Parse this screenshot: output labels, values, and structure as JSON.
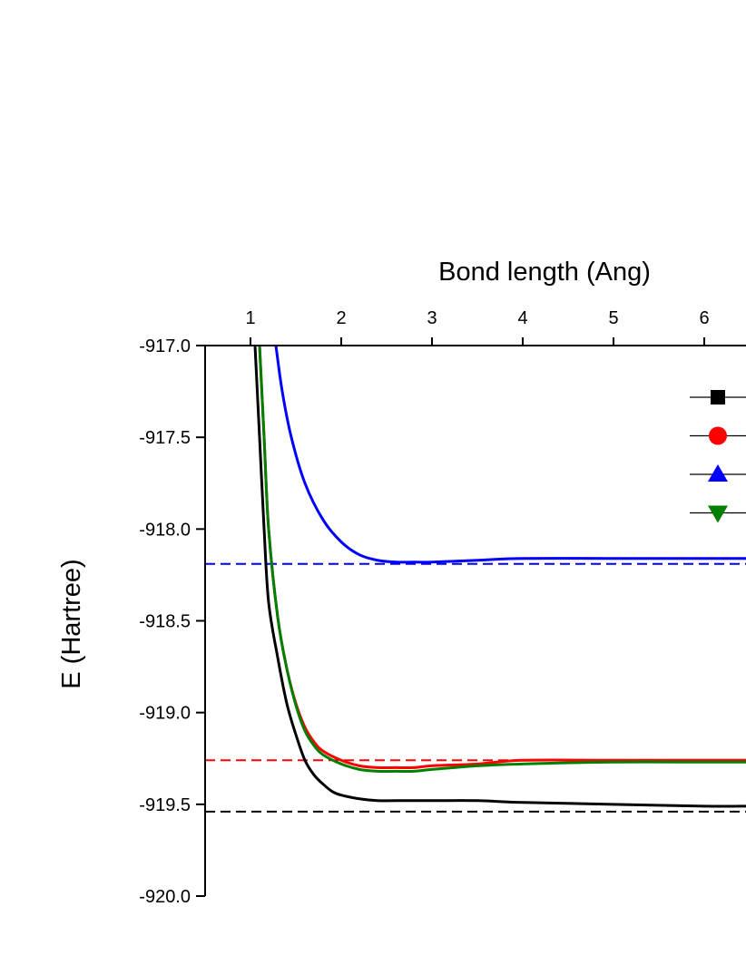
{
  "chart_data": {
    "type": "line",
    "xlabel": "Bond length (Ang)",
    "ylabel": "E (Hartree)",
    "xlim": [
      0.5,
      6.5
    ],
    "ylim": [
      -920.0,
      -917.0
    ],
    "x_ticks": [
      1,
      2,
      3,
      4,
      5,
      6
    ],
    "x_tick_labels": [
      "1",
      "2",
      "3",
      "4",
      "5",
      "6"
    ],
    "y_ticks": [
      -917.0,
      -917.5,
      -918.0,
      -918.5,
      -919.0,
      -919.5,
      -920.0
    ],
    "y_tick_labels": [
      "-917.0",
      "-917.5",
      "-918.0",
      "-918.5",
      "-919.0",
      "-919.5",
      "-920.0"
    ],
    "x_axis_position": "top",
    "grid": false,
    "legend_position": "top-right",
    "series": [
      {
        "color": "#000000",
        "marker": "square",
        "x": [
          1.05,
          1.1,
          1.15,
          1.2,
          1.3,
          1.4,
          1.5,
          1.6,
          1.7,
          1.8,
          1.9,
          2.0,
          2.2,
          2.4,
          2.6,
          3.0,
          3.5,
          4.0,
          5.0,
          6.0,
          6.5
        ],
        "y": [
          -917.0,
          -917.5,
          -918.0,
          -918.4,
          -918.7,
          -918.95,
          -919.12,
          -919.26,
          -919.34,
          -919.39,
          -919.43,
          -919.45,
          -919.47,
          -919.48,
          -919.48,
          -919.48,
          -919.48,
          -919.49,
          -919.5,
          -919.51,
          -919.51
        ]
      },
      {
        "color": "#ff0000",
        "marker": "circle",
        "x": [
          1.1,
          1.15,
          1.2,
          1.3,
          1.4,
          1.5,
          1.6,
          1.7,
          1.8,
          2.0,
          2.2,
          2.4,
          2.6,
          2.8,
          3.0,
          3.5,
          4.0,
          5.0,
          6.0,
          6.5
        ],
        "y": [
          -917.0,
          -917.5,
          -918.0,
          -918.48,
          -918.76,
          -918.95,
          -919.08,
          -919.16,
          -919.21,
          -919.26,
          -919.29,
          -919.3,
          -919.3,
          -919.3,
          -919.29,
          -919.28,
          -919.26,
          -919.26,
          -919.26,
          -919.26
        ]
      },
      {
        "color": "#0000ff",
        "marker": "triangle-up",
        "x": [
          1.28,
          1.35,
          1.45,
          1.6,
          1.8,
          2.0,
          2.2,
          2.4,
          2.6,
          2.8,
          3.0,
          3.5,
          4.0,
          5.0,
          6.0,
          6.5
        ],
        "y": [
          -917.0,
          -917.25,
          -917.5,
          -917.75,
          -917.95,
          -918.07,
          -918.14,
          -918.17,
          -918.18,
          -918.18,
          -918.18,
          -918.17,
          -918.16,
          -918.16,
          -918.16,
          -918.16
        ]
      },
      {
        "color": "#008000",
        "marker": "triangle-down",
        "x": [
          1.1,
          1.15,
          1.2,
          1.3,
          1.4,
          1.5,
          1.6,
          1.7,
          1.8,
          2.0,
          2.2,
          2.4,
          2.6,
          2.8,
          3.0,
          3.5,
          4.0,
          5.0,
          6.0,
          6.5
        ],
        "y": [
          -917.0,
          -917.5,
          -918.0,
          -918.48,
          -918.76,
          -918.96,
          -919.1,
          -919.18,
          -919.23,
          -919.28,
          -919.31,
          -919.32,
          -919.32,
          -919.32,
          -919.31,
          -919.29,
          -919.28,
          -919.27,
          -919.27,
          -919.27
        ]
      }
    ],
    "reference_lines": [
      {
        "color": "#0000ff",
        "style": "dashed",
        "y": -918.19
      },
      {
        "color": "#ff0000",
        "style": "dashed",
        "y": -919.26
      },
      {
        "color": "#000000",
        "style": "dashed",
        "y": -919.54
      }
    ]
  }
}
